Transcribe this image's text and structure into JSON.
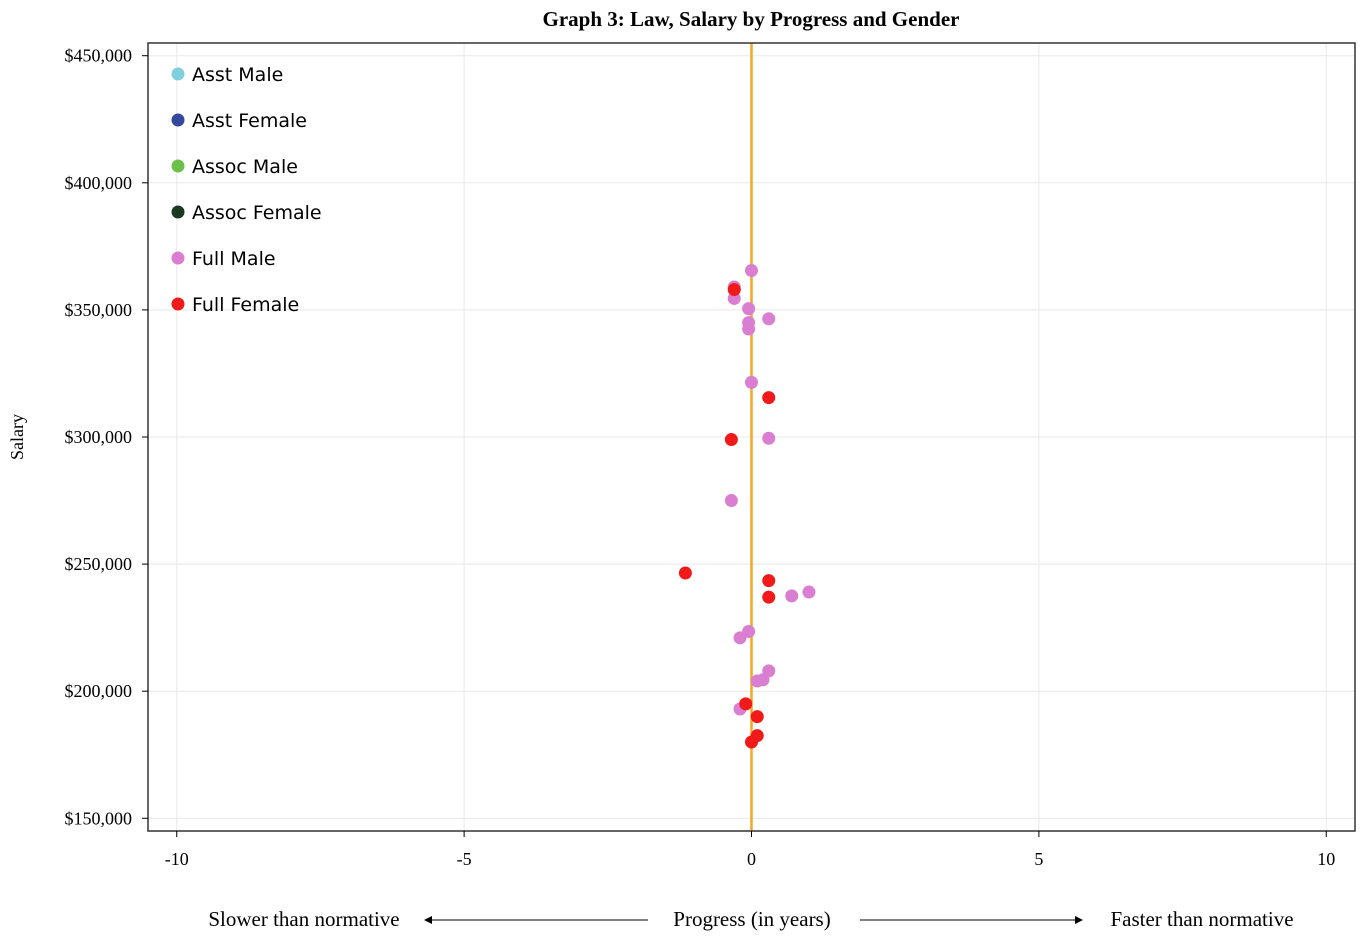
{
  "chart_data": {
    "type": "scatter",
    "title": "Graph 3: Law, Salary by Progress and Gender",
    "xlabel": "Progress (in years)",
    "xlabel_left": "Slower than normative",
    "xlabel_right": "Faster than normative",
    "ylabel": "Salary",
    "xlim": [
      -10.5,
      10.5
    ],
    "ylim": [
      145000,
      455000
    ],
    "xticks": [
      {
        "value": -10,
        "label": "-10"
      },
      {
        "value": -5,
        "label": "-5"
      },
      {
        "value": 0,
        "label": "0"
      },
      {
        "value": 5,
        "label": "5"
      },
      {
        "value": 10,
        "label": "10"
      }
    ],
    "yticks": [
      {
        "value": 150000,
        "label": "$150,000"
      },
      {
        "value": 200000,
        "label": "$200,000"
      },
      {
        "value": 250000,
        "label": "$250,000"
      },
      {
        "value": 300000,
        "label": "$300,000"
      },
      {
        "value": 350000,
        "label": "$350,000"
      },
      {
        "value": 400000,
        "label": "$400,000"
      },
      {
        "value": 450000,
        "label": "$450,000"
      }
    ],
    "grid": true,
    "legend_position": "top-left",
    "reference_line": {
      "x": 0,
      "color": "#f5a623"
    },
    "series": [
      {
        "name": "Asst Male",
        "color": "#7fcfdc",
        "points": []
      },
      {
        "name": "Asst Female",
        "color": "#34489c",
        "points": []
      },
      {
        "name": "Assoc Male",
        "color": "#6cc04a",
        "points": []
      },
      {
        "name": "Assoc Female",
        "color": "#1a3a1f",
        "points": []
      },
      {
        "name": "Full Male",
        "color": "#d97ed0",
        "points": [
          {
            "x": 0.0,
            "y": 365500
          },
          {
            "x": -0.3,
            "y": 359000
          },
          {
            "x": -0.3,
            "y": 354500
          },
          {
            "x": -0.05,
            "y": 350500
          },
          {
            "x": 0.3,
            "y": 346500
          },
          {
            "x": -0.05,
            "y": 345000
          },
          {
            "x": -0.05,
            "y": 342500
          },
          {
            "x": 0.0,
            "y": 321500
          },
          {
            "x": 0.3,
            "y": 299500
          },
          {
            "x": -0.35,
            "y": 275000
          },
          {
            "x": 1.0,
            "y": 239000
          },
          {
            "x": 0.7,
            "y": 237500
          },
          {
            "x": -0.05,
            "y": 223500
          },
          {
            "x": -0.2,
            "y": 221000
          },
          {
            "x": 0.3,
            "y": 208000
          },
          {
            "x": 0.2,
            "y": 204500
          },
          {
            "x": 0.1,
            "y": 204000
          },
          {
            "x": -0.2,
            "y": 193000
          }
        ]
      },
      {
        "name": "Full Female",
        "color": "#f01a1a",
        "points": [
          {
            "x": -0.3,
            "y": 358000
          },
          {
            "x": 0.3,
            "y": 315500
          },
          {
            "x": -0.35,
            "y": 299000
          },
          {
            "x": -1.15,
            "y": 246500
          },
          {
            "x": 0.3,
            "y": 243500
          },
          {
            "x": 0.3,
            "y": 237000
          },
          {
            "x": -0.1,
            "y": 195000
          },
          {
            "x": 0.1,
            "y": 190000
          },
          {
            "x": 0.1,
            "y": 182500
          },
          {
            "x": 0.0,
            "y": 180000
          }
        ]
      }
    ]
  }
}
